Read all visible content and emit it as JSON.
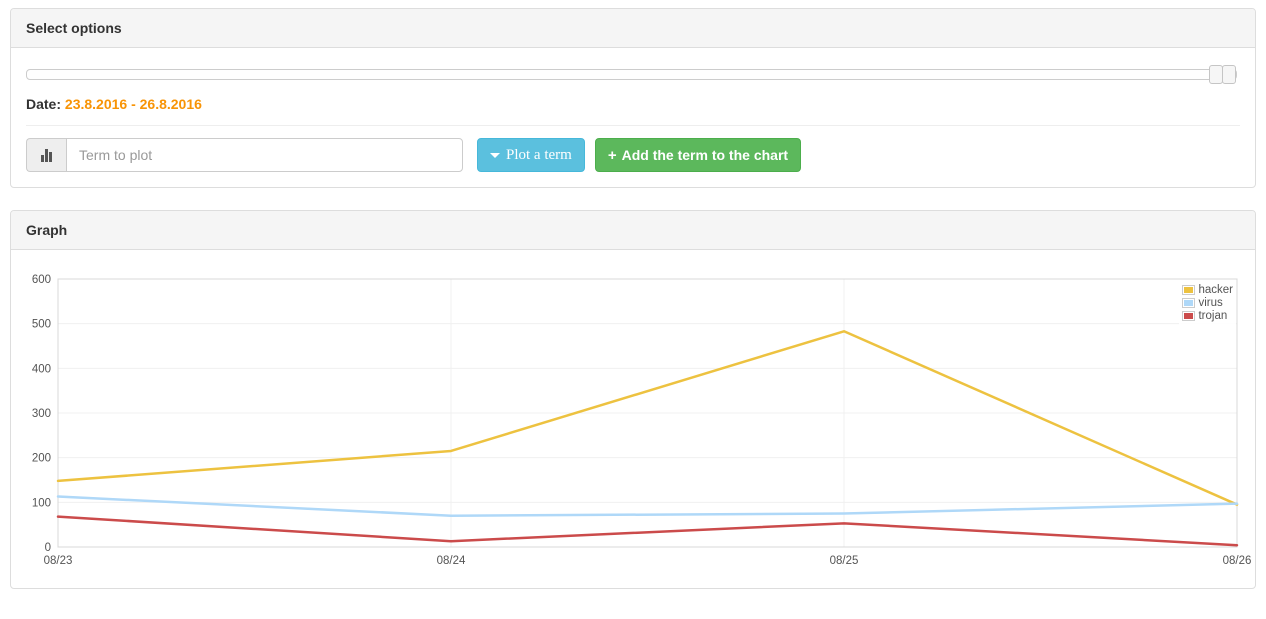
{
  "select_options_panel": {
    "title": "Select options",
    "slider": {
      "left_handle_pct": 98.8,
      "right_handle_pct": 100
    },
    "date_label": "Date:",
    "date_range": "23.8.2016 - 26.8.2016",
    "term_input": {
      "placeholder": "Term to plot",
      "value": ""
    },
    "plot_button_label": "Plot a term",
    "add_button_label": "Add the term to the chart"
  },
  "graph_panel": {
    "title": "Graph"
  },
  "icons": {
    "plus": "+",
    "input_addon": "bar-chart-icon",
    "plot_button": "caret-down-icon"
  },
  "colors": {
    "date_accent": "#f89406",
    "plot_button_bg": "#5bc0de",
    "add_button_bg": "#5cb85c",
    "tick_label": "#545454",
    "gridline": "#f0f0f0",
    "plot_border": "#d8d8d8"
  },
  "chart_data": {
    "type": "line",
    "x": [
      "08/23",
      "08/24",
      "08/25",
      "08/26"
    ],
    "series": [
      {
        "name": "hacker",
        "color": "#edc240",
        "values": [
          148,
          215,
          483,
          95
        ]
      },
      {
        "name": "virus",
        "color": "#afd8f8",
        "values": [
          113,
          70,
          75,
          97
        ]
      },
      {
        "name": "trojan",
        "color": "#cb4b4b",
        "values": [
          68,
          13,
          53,
          4
        ]
      }
    ],
    "title": "",
    "xlabel": "",
    "ylabel": "",
    "ylim": [
      0,
      600
    ],
    "yticks": [
      0,
      100,
      200,
      300,
      400,
      500,
      600
    ],
    "grid": true,
    "legend_position": "top-right"
  }
}
